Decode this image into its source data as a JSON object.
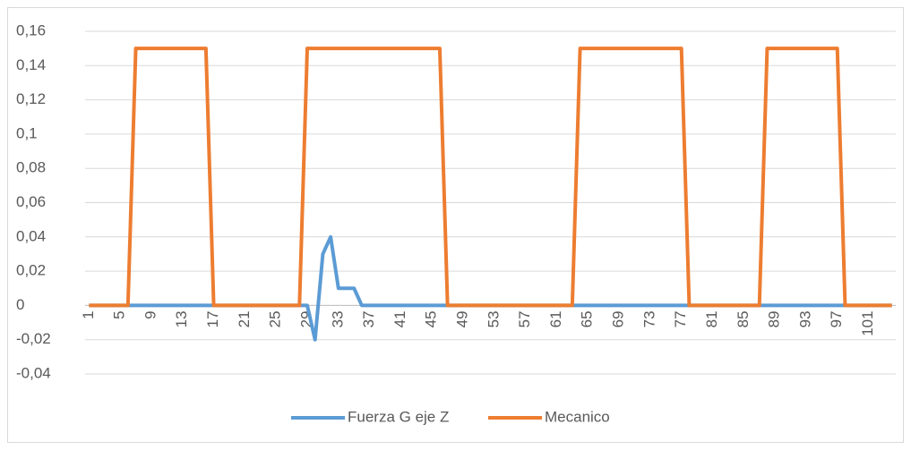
{
  "chart_data": {
    "type": "line",
    "categories": [
      "1",
      null,
      null,
      null,
      "5",
      null,
      null,
      null,
      "9",
      null,
      null,
      null,
      "13",
      null,
      null,
      null,
      "17",
      null,
      null,
      null,
      "21",
      null,
      null,
      null,
      "25",
      null,
      null,
      null,
      "29",
      null,
      null,
      null,
      "33",
      null,
      null,
      null,
      "37",
      null,
      null,
      null,
      "41",
      null,
      null,
      null,
      "45",
      null,
      null,
      null,
      "49",
      null,
      null,
      null,
      "53",
      null,
      null,
      null,
      "57",
      null,
      null,
      null,
      "61",
      null,
      null,
      null,
      "65",
      null,
      null,
      null,
      "69",
      null,
      null,
      null,
      "73",
      null,
      null,
      null,
      "77",
      null,
      null,
      null,
      "81",
      null,
      null,
      null,
      "85",
      null,
      null,
      null,
      "89",
      null,
      null,
      null,
      "93",
      null,
      null,
      null,
      "97",
      null,
      null,
      null,
      "101",
      null,
      null,
      null
    ],
    "series": [
      {
        "name": "Fuerza G eje Z",
        "color": "#5b9bd5",
        "values": [
          0,
          0,
          0,
          0,
          0,
          0,
          0,
          0,
          0,
          0,
          0,
          0,
          0,
          0,
          0,
          0,
          0,
          0,
          0,
          0,
          0,
          0,
          0,
          0,
          0,
          0,
          0,
          0,
          0,
          -0.02,
          0.03,
          0.04,
          0.01,
          0.01,
          0.01,
          0,
          0,
          0,
          0,
          0,
          0,
          0,
          0,
          0,
          0,
          0,
          0,
          0,
          0,
          0,
          0,
          0,
          0,
          0,
          0,
          0,
          0,
          0,
          0,
          0,
          0,
          0,
          0,
          0,
          0,
          0,
          0,
          0,
          0,
          0,
          0,
          0,
          0,
          0,
          0,
          0,
          0,
          0,
          0,
          0,
          0,
          0,
          0,
          0,
          0,
          0,
          0,
          0,
          0,
          0,
          0,
          0,
          0,
          0,
          0,
          0,
          0,
          0,
          0,
          0,
          0,
          0,
          0,
          0
        ]
      },
      {
        "name": "Mecanico",
        "color": "#ed7d31",
        "values": [
          0,
          0,
          0,
          0,
          0,
          0,
          0.15,
          0.15,
          0.15,
          0.15,
          0.15,
          0.15,
          0.15,
          0.15,
          0.15,
          0.15,
          0,
          0,
          0,
          0,
          0,
          0,
          0,
          0,
          0,
          0,
          0,
          0,
          0.15,
          0.15,
          0.15,
          0.15,
          0.15,
          0.15,
          0.15,
          0.15,
          0.15,
          0.15,
          0.15,
          0.15,
          0.15,
          0.15,
          0.15,
          0.15,
          0.15,
          0.15,
          0,
          0,
          0,
          0,
          0,
          0,
          0,
          0,
          0,
          0,
          0,
          0,
          0,
          0,
          0,
          0,
          0,
          0.15,
          0.15,
          0.15,
          0.15,
          0.15,
          0.15,
          0.15,
          0.15,
          0.15,
          0.15,
          0.15,
          0.15,
          0.15,
          0.15,
          0,
          0,
          0,
          0,
          0,
          0,
          0,
          0,
          0,
          0,
          0.15,
          0.15,
          0.15,
          0.15,
          0.15,
          0.15,
          0.15,
          0.15,
          0.15,
          0.15,
          0,
          0,
          0,
          0,
          0,
          0,
          0
        ]
      }
    ],
    "ylim": [
      -0.04,
      0.16
    ],
    "yticks": [
      {
        "value": -0.04,
        "label": "-0,04"
      },
      {
        "value": -0.02,
        "label": "-0,02"
      },
      0,
      {
        "value": 0.02,
        "label": "0,02"
      },
      {
        "value": 0.04,
        "label": "0,04"
      },
      {
        "value": 0.06,
        "label": "0,06"
      },
      {
        "value": 0.08,
        "label": "0,08"
      },
      {
        "value": 0.1,
        "label": "0,1"
      },
      {
        "value": 0.12,
        "label": "0,12"
      },
      {
        "value": 0.14,
        "label": "0,14"
      },
      {
        "value": 0.16,
        "label": "0,16"
      }
    ],
    "grid": true,
    "legend": "bottom"
  }
}
